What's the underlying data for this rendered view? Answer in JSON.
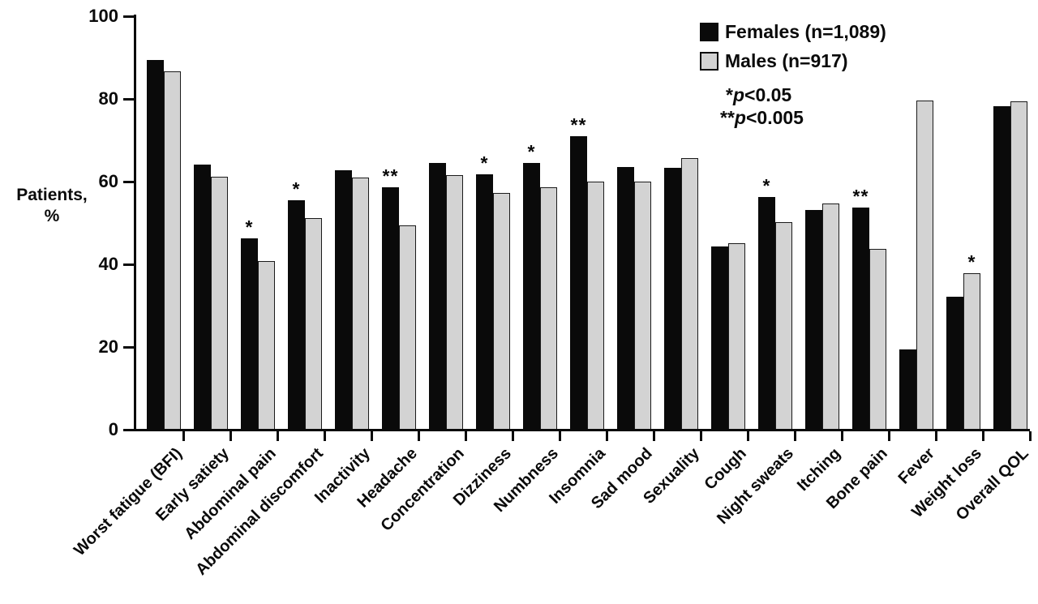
{
  "figure": {
    "ylabel_line1": "Patients,",
    "ylabel_line2": "%",
    "annotations": [
      {
        "stars": "*",
        "var": "p",
        "rest": "<0.05"
      },
      {
        "stars": "**",
        "var": "p",
        "rest": "<0.005"
      }
    ]
  },
  "chart_data": {
    "type": "bar",
    "title": "",
    "xlabel": "",
    "ylabel": "Patients, %",
    "ylim": [
      0,
      100
    ],
    "yticks": [
      0,
      20,
      40,
      60,
      80,
      100
    ],
    "grid": false,
    "legend_position": "top-right",
    "categories": [
      "Worst fatigue (BFI)",
      "Early satiety",
      "Abdominal pain",
      "Abdominal discomfort",
      "Inactivity",
      "Headache",
      "Concentration",
      "Dizziness",
      "Numbness",
      "Insomnia",
      "Sad mood",
      "Sexuality",
      "Cough",
      "Night sweats",
      "Itching",
      "Bone pain",
      "Fever",
      "Weight loss",
      "Overall QOL"
    ],
    "series": [
      {
        "name": "Females (n=1,089)",
        "color": "#0a0a0a",
        "values": [
          89.2,
          64.0,
          46.0,
          55.3,
          62.5,
          58.5,
          64.3,
          61.6,
          64.3,
          70.7,
          63.3,
          63.1,
          44.1,
          56.1,
          53.0,
          53.6,
          19.2,
          32.0,
          78.0
        ]
      },
      {
        "name": "Males (n=917)",
        "color": "#d3d3d3",
        "values": [
          86.5,
          61.0,
          40.5,
          51.0,
          60.8,
          49.3,
          61.4,
          57.0,
          58.5,
          59.8,
          59.8,
          65.5,
          44.9,
          50.0,
          54.6,
          43.5,
          79.4,
          37.6,
          79.3
        ]
      }
    ],
    "significance": [
      {
        "category": "Abdominal pain",
        "marker": "*",
        "over": "Females"
      },
      {
        "category": "Abdominal discomfort",
        "marker": "*",
        "over": "Females"
      },
      {
        "category": "Headache",
        "marker": "**",
        "over": "Females"
      },
      {
        "category": "Dizziness",
        "marker": "*",
        "over": "Females"
      },
      {
        "category": "Numbness",
        "marker": "*",
        "over": "Females"
      },
      {
        "category": "Insomnia",
        "marker": "**",
        "over": "Females"
      },
      {
        "category": "Night sweats",
        "marker": "*",
        "over": "Females"
      },
      {
        "category": "Bone pain",
        "marker": "**",
        "over": "Females"
      },
      {
        "category": "Weight loss",
        "marker": "*",
        "over": "Males"
      }
    ]
  }
}
